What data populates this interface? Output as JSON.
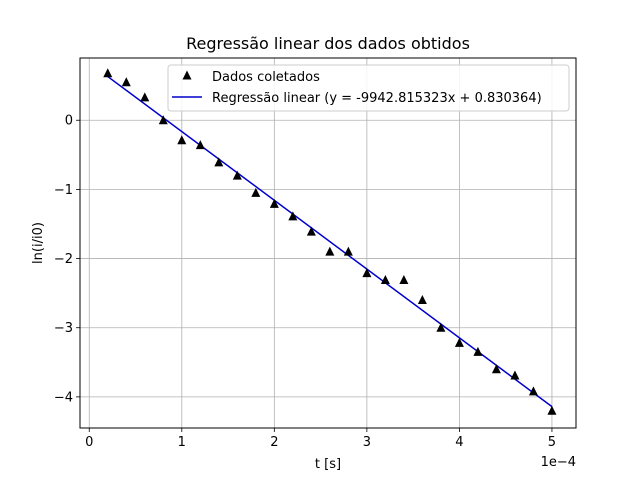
{
  "chart_data": {
    "type": "scatter",
    "title": "Regressão linear dos dados obtidos",
    "xlabel": "t [s]",
    "ylabel": "ln(i/i0)",
    "x_offset_label": "1e−4",
    "xlim": [
      -1e-05,
      0.000526
    ],
    "ylim": [
      -4.45,
      0.9
    ],
    "grid": true,
    "legend_position": "top-right",
    "x_ticks": [
      {
        "value": 0,
        "label": "0"
      },
      {
        "value": 0.0001,
        "label": "1"
      },
      {
        "value": 0.0002,
        "label": "2"
      },
      {
        "value": 0.0003,
        "label": "3"
      },
      {
        "value": 0.0004,
        "label": "4"
      },
      {
        "value": 0.0005,
        "label": "5"
      }
    ],
    "y_ticks": [
      {
        "value": 0,
        "label": "0"
      },
      {
        "value": -1,
        "label": "−1"
      },
      {
        "value": -2,
        "label": "−2"
      },
      {
        "value": -3,
        "label": "−3"
      },
      {
        "value": -4,
        "label": "−4"
      }
    ],
    "series": [
      {
        "name": "Dados coletados",
        "kind": "scatter",
        "marker": "triangle",
        "color": "#000000",
        "x": [
          2e-05,
          4e-05,
          6e-05,
          8e-05,
          0.0001,
          0.00012,
          0.00014,
          0.00016,
          0.00018,
          0.0002,
          0.00022,
          0.00024,
          0.00026,
          0.00028,
          0.0003,
          0.00032,
          0.00034,
          0.00036,
          0.00038,
          0.0004,
          0.00042,
          0.00044,
          0.00046,
          0.00048,
          0.0005
        ],
        "y": [
          0.68,
          0.55,
          0.33,
          0.0,
          -0.29,
          -0.36,
          -0.61,
          -0.8,
          -1.05,
          -1.21,
          -1.39,
          -1.61,
          -1.9,
          -1.9,
          -2.21,
          -2.31,
          -2.31,
          -2.6,
          -3.0,
          -3.22,
          -3.35,
          -3.6,
          -3.69,
          -3.92,
          -4.2
        ]
      },
      {
        "name": "Regressão linear (y = -9942.815323x + 0.830364)",
        "kind": "line",
        "color": "#0000cc",
        "slope": -9942.815323,
        "intercept": 0.830364,
        "x": [
          2e-05,
          0.0005
        ]
      }
    ]
  }
}
